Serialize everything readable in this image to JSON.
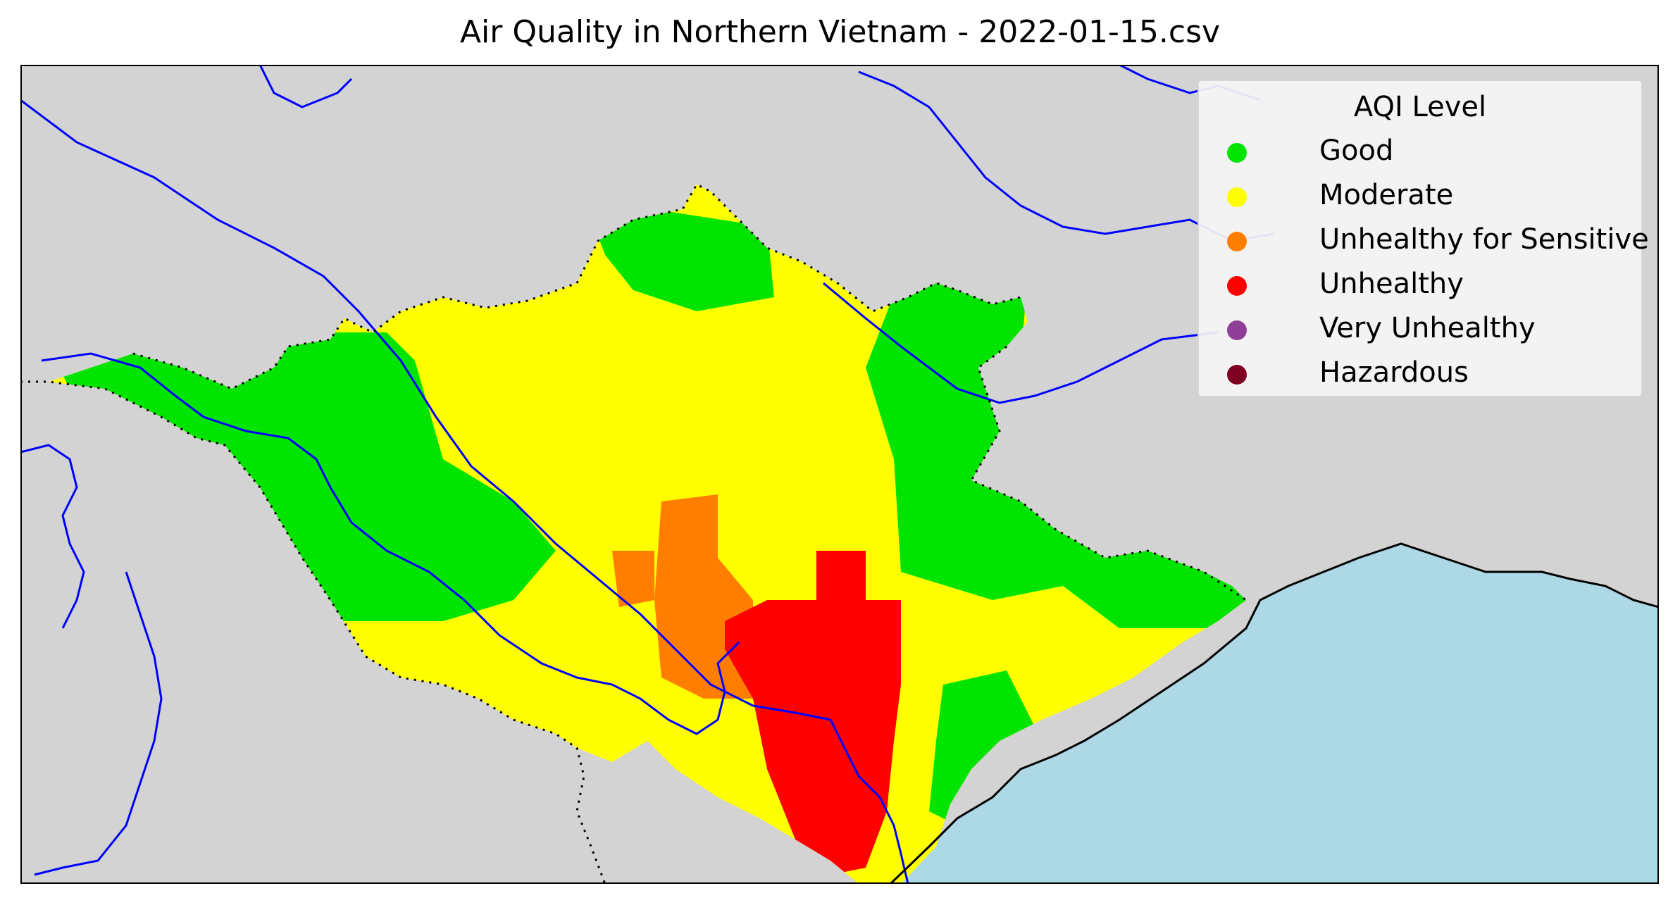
{
  "title": "Air Quality in Northern Vietnam - 2022-01-15.csv",
  "colors": {
    "land": "#d3d3d3",
    "sea": "#add8e6",
    "rivers": "#0000ff",
    "border": "#000000"
  },
  "legend": {
    "title": "AQI Level",
    "placement": "top-right",
    "items": [
      {
        "label": "Good",
        "color": "#00e400"
      },
      {
        "label": "Moderate",
        "color": "#ffff00"
      },
      {
        "label": "Unhealthy for Sensitive",
        "color": "#ff7e00"
      },
      {
        "label": "Unhealthy",
        "color": "#ff0000"
      },
      {
        "label": "Very Unhealthy",
        "color": "#8f3f97"
      },
      {
        "label": "Hazardous",
        "color": "#7e0023"
      }
    ]
  }
}
